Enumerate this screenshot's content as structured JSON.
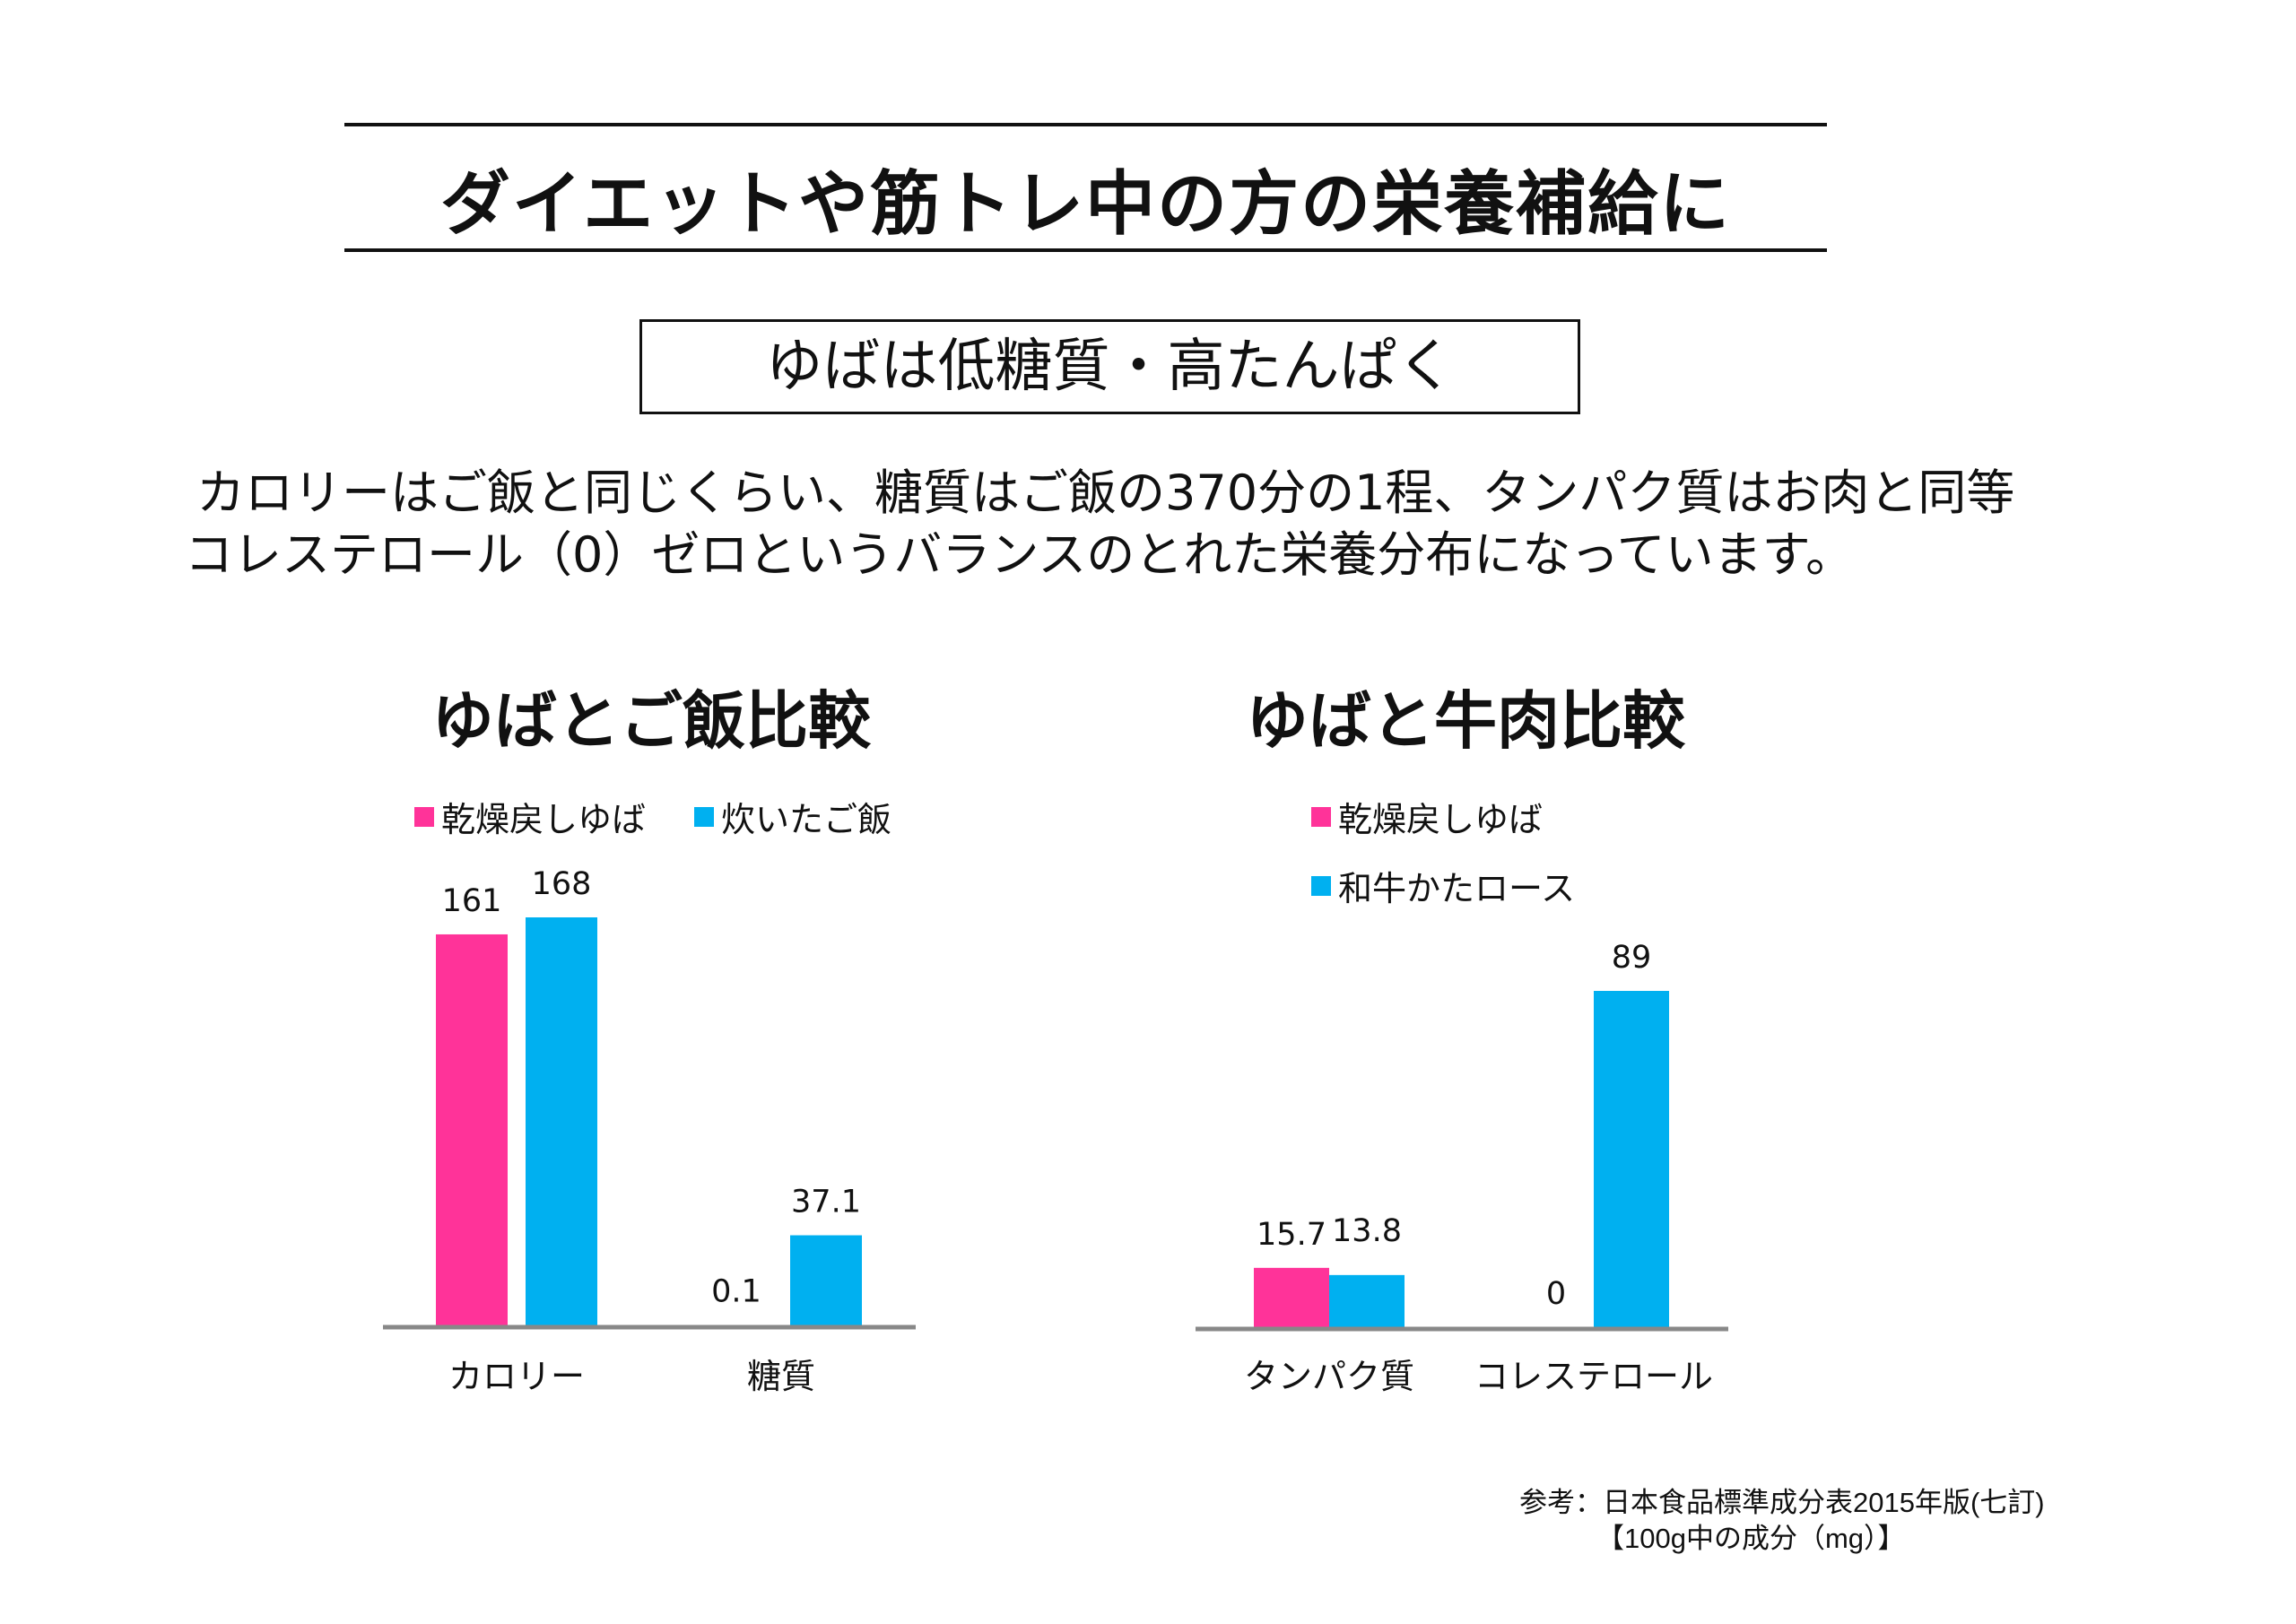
{
  "header": {
    "title": "ダイエットや筋トレ中の方の栄養補給に",
    "subtitle": "ゆばは低糖質・高たんぱく",
    "paragraph": [
      "カロリーはご飯と同じくらい、糖質はご飯の370分の1程、タンパク質はお肉と同等",
      "コレステロール（0）ゼロというバランスのとれた栄養分布になっています。"
    ]
  },
  "colors": {
    "pink": "#FF3399",
    "blue": "#00B0F0",
    "axis": "#888888"
  },
  "chart_data": [
    {
      "type": "bar",
      "title": "ゆばとご飯比較",
      "categories": [
        "カロリー",
        "糖質"
      ],
      "series": [
        {
          "name": "乾燥戻しゆば",
          "values": [
            161,
            0.1
          ],
          "labels": [
            "161",
            "0.1"
          ]
        },
        {
          "name": "炊いたご飯",
          "values": [
            168,
            37.1
          ],
          "labels": [
            "168",
            "37.1"
          ]
        }
      ],
      "legend": "top",
      "ylim": [
        0,
        168
      ],
      "grid": false
    },
    {
      "type": "bar",
      "title": "ゆばと牛肉比較",
      "categories": [
        "タンパク質",
        "コレステロール"
      ],
      "series": [
        {
          "name": "乾燥戻しゆば",
          "values": [
            15.7,
            0
          ],
          "labels": [
            "15.7",
            "0"
          ]
        },
        {
          "name": "和牛かたロース",
          "values": [
            13.8,
            89
          ],
          "labels": [
            "13.8",
            "89"
          ]
        }
      ],
      "legend": "top-left",
      "ylim": [
        0,
        89
      ],
      "grid": false
    }
  ],
  "footer": {
    "source": "参考：日本食品標準成分表2015年版(七訂)",
    "unit": "【100g中の成分（mg）】"
  }
}
